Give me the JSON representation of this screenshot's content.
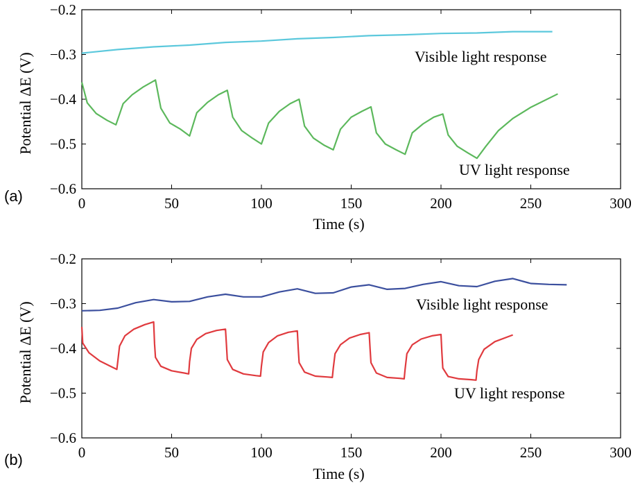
{
  "chart_data": [
    {
      "panel_label": "(a)",
      "type": "line",
      "xlabel": "Time (s)",
      "ylabel": "Potential  ΔE (V)",
      "xlim": [
        0,
        300
      ],
      "ylim": [
        -0.6,
        -0.2
      ],
      "xticks": [
        "0",
        "50",
        "100",
        "150",
        "200",
        "250",
        "300"
      ],
      "yticks": [
        "−0.6",
        "−0.5",
        "−0.4",
        "−0.3",
        "−0.2"
      ],
      "grid": false,
      "annotations": [
        "Visible light response",
        "UV light response"
      ],
      "series": [
        {
          "color": "#5bc8dc",
          "x": [
            0,
            20,
            40,
            60,
            80,
            100,
            120,
            140,
            160,
            180,
            200,
            220,
            240,
            262
          ],
          "y": [
            -0.297,
            -0.289,
            -0.283,
            -0.279,
            -0.273,
            -0.27,
            -0.265,
            -0.262,
            -0.258,
            -0.256,
            -0.253,
            -0.252,
            -0.249,
            -0.249
          ]
        },
        {
          "color": "#5cb85c",
          "x": [
            0,
            3,
            8,
            14,
            19,
            23,
            28,
            34,
            41,
            44,
            49,
            55,
            60,
            64,
            70,
            76,
            81,
            84,
            89,
            95,
            100,
            104,
            110,
            116,
            121,
            124,
            129,
            135,
            140,
            144,
            150,
            156,
            161,
            164,
            169,
            175,
            180,
            184,
            190,
            196,
            201,
            204,
            209,
            215,
            220,
            225,
            232,
            240,
            250,
            265
          ],
          "y": [
            -0.362,
            -0.408,
            -0.432,
            -0.447,
            -0.457,
            -0.41,
            -0.39,
            -0.373,
            -0.357,
            -0.42,
            -0.453,
            -0.467,
            -0.482,
            -0.43,
            -0.407,
            -0.39,
            -0.38,
            -0.44,
            -0.47,
            -0.487,
            -0.5,
            -0.453,
            -0.427,
            -0.41,
            -0.4,
            -0.46,
            -0.487,
            -0.503,
            -0.513,
            -0.467,
            -0.44,
            -0.427,
            -0.417,
            -0.475,
            -0.5,
            -0.513,
            -0.523,
            -0.475,
            -0.455,
            -0.44,
            -0.433,
            -0.48,
            -0.505,
            -0.52,
            -0.532,
            -0.505,
            -0.47,
            -0.443,
            -0.418,
            -0.388
          ]
        }
      ]
    },
    {
      "panel_label": "(b)",
      "type": "line",
      "xlabel": "Time (s)",
      "ylabel": "Potential  ΔE (V)",
      "xlim": [
        0,
        300
      ],
      "ylim": [
        -0.6,
        -0.2
      ],
      "xticks": [
        "0",
        "50",
        "100",
        "150",
        "200",
        "250",
        "300"
      ],
      "yticks": [
        "−0.6",
        "−0.5",
        "−0.4",
        "−0.3",
        "−0.2"
      ],
      "grid": false,
      "annotations": [
        "Visible light response",
        "UV light response"
      ],
      "series": [
        {
          "color": "#3b4f9e",
          "x": [
            0,
            10,
            20,
            30,
            40,
            50,
            60,
            70,
            80,
            90,
            100,
            110,
            120,
            130,
            140,
            150,
            160,
            170,
            180,
            190,
            200,
            210,
            220,
            230,
            240,
            250,
            260,
            270
          ],
          "y": [
            -0.316,
            -0.315,
            -0.31,
            -0.298,
            -0.291,
            -0.296,
            -0.295,
            -0.285,
            -0.279,
            -0.285,
            -0.285,
            -0.274,
            -0.267,
            -0.277,
            -0.276,
            -0.263,
            -0.258,
            -0.268,
            -0.266,
            -0.257,
            -0.251,
            -0.26,
            -0.262,
            -0.25,
            -0.244,
            -0.255,
            -0.257,
            -0.258
          ]
        },
        {
          "color": "#e03a3e",
          "x": [
            0,
            0.5,
            4,
            10,
            17,
            19.5,
            20,
            21,
            24,
            29,
            35,
            40,
            40.5,
            41,
            44,
            50,
            57,
            59.5,
            60,
            61,
            64,
            69,
            75,
            80,
            80.5,
            81,
            84,
            90,
            97,
            99.5,
            100,
            101,
            104,
            109,
            115,
            120,
            120.5,
            121,
            124,
            130,
            137,
            139.5,
            140,
            141,
            144,
            149,
            155,
            160,
            160.5,
            161,
            164,
            170,
            177,
            179.5,
            180,
            181,
            184,
            189,
            195,
            200,
            200.5,
            201,
            204,
            210,
            217,
            219.5,
            220,
            221,
            224,
            230,
            240
          ],
          "y": [
            -0.352,
            -0.388,
            -0.41,
            -0.428,
            -0.442,
            -0.447,
            -0.43,
            -0.395,
            -0.372,
            -0.357,
            -0.347,
            -0.341,
            -0.39,
            -0.42,
            -0.44,
            -0.45,
            -0.455,
            -0.457,
            -0.43,
            -0.4,
            -0.38,
            -0.367,
            -0.36,
            -0.357,
            -0.39,
            -0.425,
            -0.447,
            -0.457,
            -0.461,
            -0.462,
            -0.44,
            -0.408,
            -0.387,
            -0.372,
            -0.364,
            -0.361,
            -0.4,
            -0.432,
            -0.453,
            -0.462,
            -0.464,
            -0.465,
            -0.445,
            -0.412,
            -0.392,
            -0.377,
            -0.369,
            -0.365,
            -0.4,
            -0.432,
            -0.455,
            -0.465,
            -0.467,
            -0.468,
            -0.447,
            -0.412,
            -0.392,
            -0.379,
            -0.372,
            -0.369,
            -0.41,
            -0.444,
            -0.463,
            -0.468,
            -0.47,
            -0.471,
            -0.45,
            -0.425,
            -0.402,
            -0.385,
            -0.37
          ]
        }
      ]
    }
  ]
}
